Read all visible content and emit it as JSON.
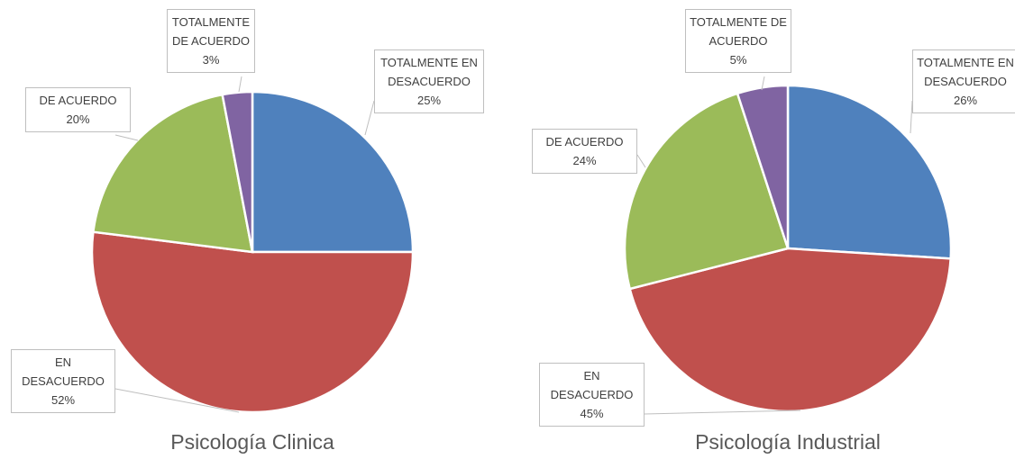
{
  "chart_data": [
    {
      "type": "pie",
      "title": "Psicología Clinica",
      "categories": [
        "TOTALMENTE EN DESACUERDO",
        "EN DESACUERDO",
        "DE ACUERDO",
        "TOTALMENTE DE ACUERDO"
      ],
      "values": [
        25,
        52,
        20,
        3
      ],
      "value_labels": [
        "25%",
        "52%",
        "20%",
        "3%"
      ],
      "colors": [
        "#4f81bd",
        "#c0504d",
        "#9bbb59",
        "#8064a2"
      ]
    },
    {
      "type": "pie",
      "title": "Psicología Industrial",
      "categories": [
        "TOTALMENTE EN DESACUERDO",
        "EN DESACUERDO",
        "DE ACUERDO",
        "TOTALMENTE DE ACUERDO"
      ],
      "values": [
        26,
        45,
        24,
        5
      ],
      "value_labels": [
        "26%",
        "45%",
        "24%",
        "5%"
      ],
      "colors": [
        "#4f81bd",
        "#c0504d",
        "#9bbb59",
        "#8064a2"
      ]
    }
  ]
}
